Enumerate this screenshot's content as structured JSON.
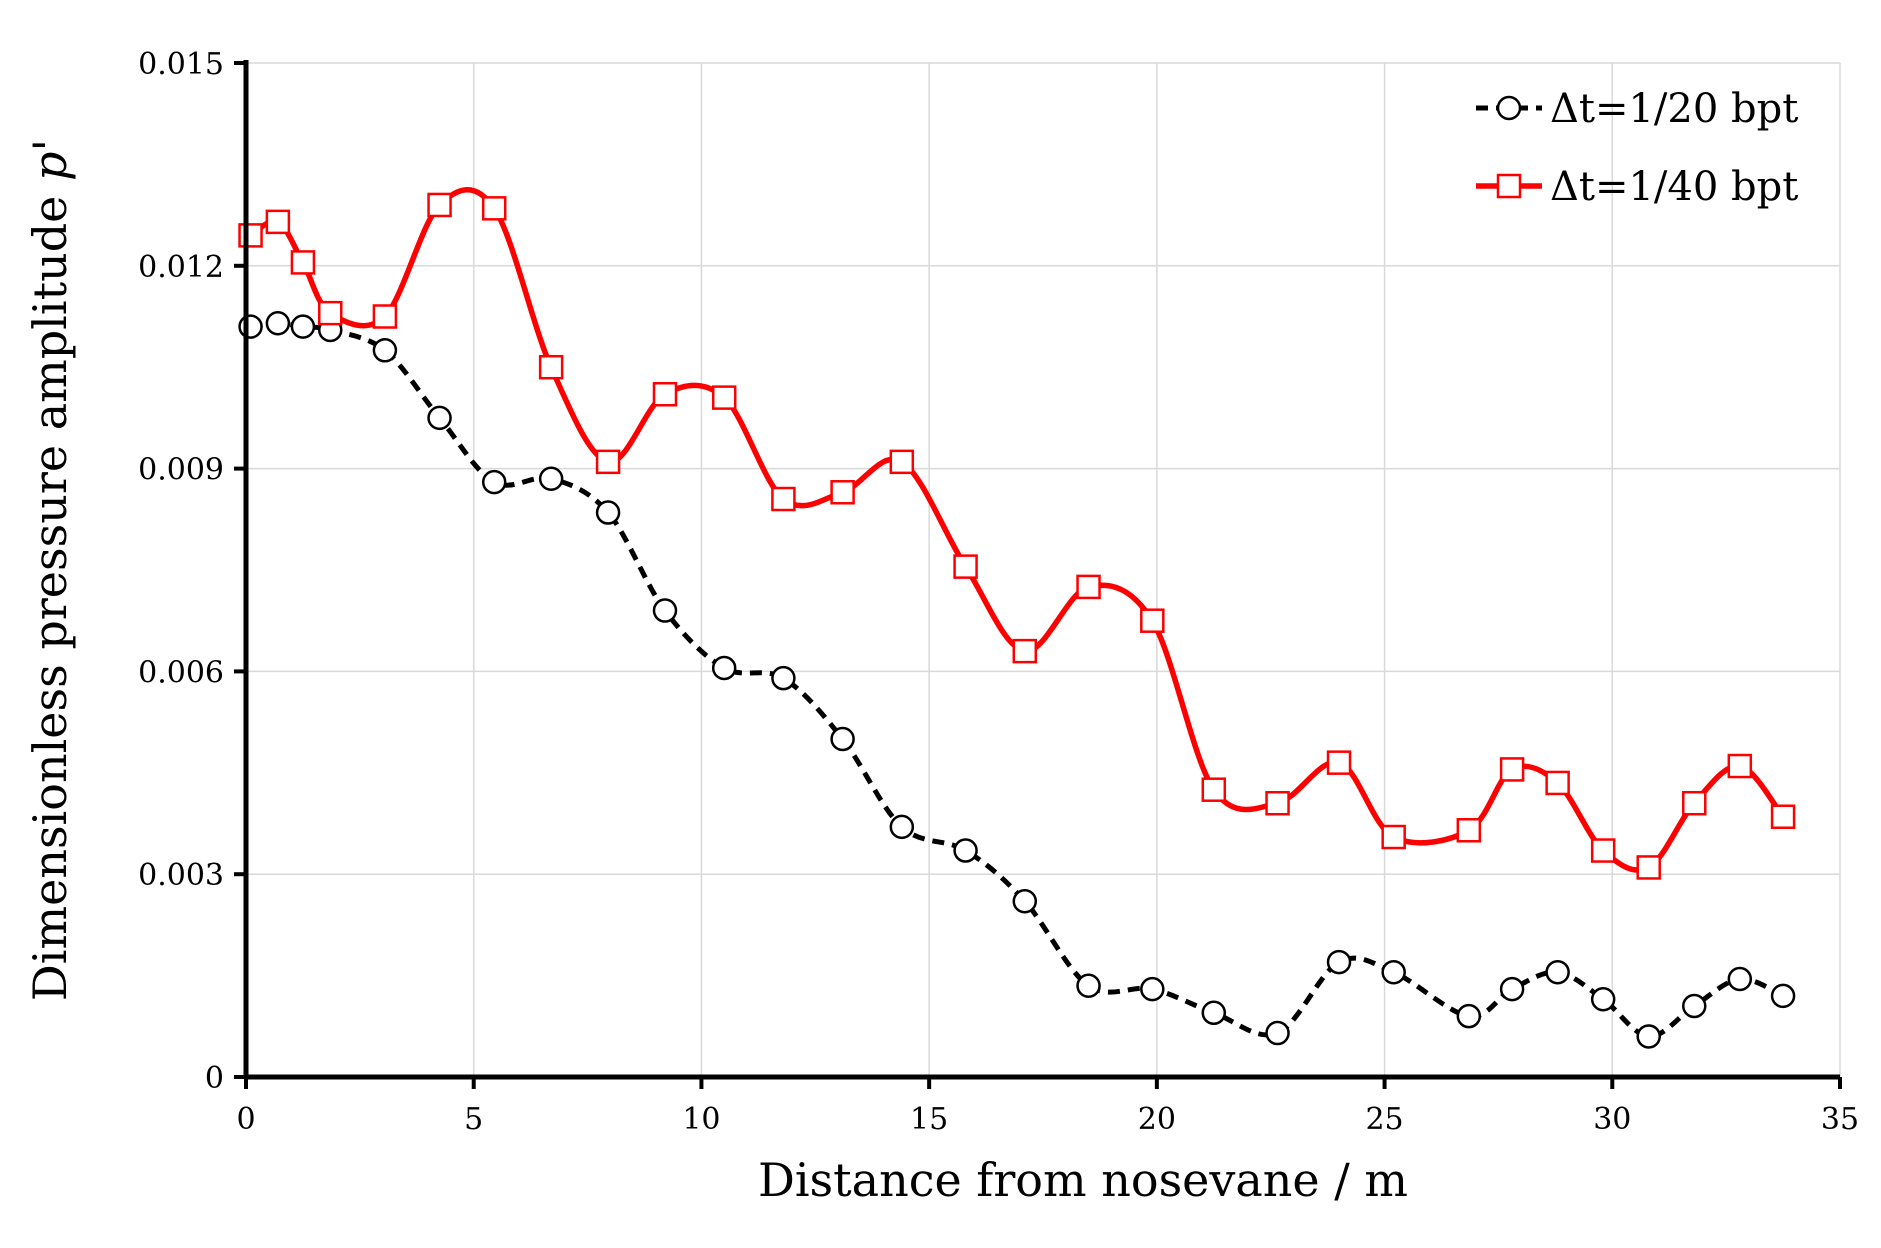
{
  "chart_data": {
    "type": "line",
    "xlabel": "Distance from nosevane  / m",
    "ylabel": "Dimensionless pressure amplitude ",
    "ylabel_symbol": "p'",
    "xlim": [
      0,
      35
    ],
    "ylim": [
      0,
      0.015
    ],
    "x_ticks": [
      "0",
      "5",
      "10",
      "15",
      "20",
      "25",
      "30",
      "35"
    ],
    "y_ticks": [
      "0",
      "0.003",
      "0.006",
      "0.009",
      "0.012",
      "0.015"
    ],
    "grid": true,
    "legend_position": "top-right",
    "series": [
      {
        "name": "Δt=1/20 bpt",
        "color": "#000000",
        "line_style": "dashed",
        "marker": "circle",
        "x": [
          0.1,
          0.7,
          1.25,
          1.85,
          3.05,
          4.25,
          5.45,
          6.7,
          7.95,
          9.2,
          10.5,
          11.8,
          13.1,
          14.4,
          15.8,
          17.1,
          18.5,
          19.9,
          21.25,
          22.65,
          24.0,
          25.2,
          26.85,
          27.8,
          28.8,
          29.8,
          30.8,
          31.8,
          32.8,
          33.75
        ],
        "y": [
          0.0111,
          0.01115,
          0.0111,
          0.01105,
          0.01075,
          0.00975,
          0.0088,
          0.00885,
          0.00835,
          0.0069,
          0.00605,
          0.0059,
          0.005,
          0.0037,
          0.00335,
          0.0026,
          0.00135,
          0.0013,
          0.00095,
          0.00065,
          0.0017,
          0.00155,
          0.0009,
          0.0013,
          0.00155,
          0.00115,
          0.0006,
          0.00105,
          0.00145,
          0.0012
        ]
      },
      {
        "name": "Δt=1/40 bpt",
        "color": "#ff0000",
        "line_style": "solid",
        "marker": "square",
        "x": [
          0.1,
          0.7,
          1.25,
          1.85,
          3.05,
          4.25,
          5.45,
          6.7,
          7.95,
          9.2,
          10.5,
          11.8,
          13.1,
          14.4,
          15.8,
          17.1,
          18.5,
          19.9,
          21.25,
          22.65,
          24.0,
          25.2,
          26.85,
          27.8,
          28.8,
          29.8,
          30.8,
          31.8,
          32.8,
          33.75
        ],
        "y": [
          0.01245,
          0.01265,
          0.01205,
          0.0113,
          0.01125,
          0.0129,
          0.01285,
          0.0105,
          0.0091,
          0.0101,
          0.01005,
          0.00855,
          0.00865,
          0.0091,
          0.00755,
          0.0063,
          0.00725,
          0.00675,
          0.00425,
          0.00405,
          0.00465,
          0.00355,
          0.00365,
          0.00455,
          0.00435,
          0.00335,
          0.0031,
          0.00405,
          0.0046,
          0.00385
        ]
      }
    ]
  }
}
